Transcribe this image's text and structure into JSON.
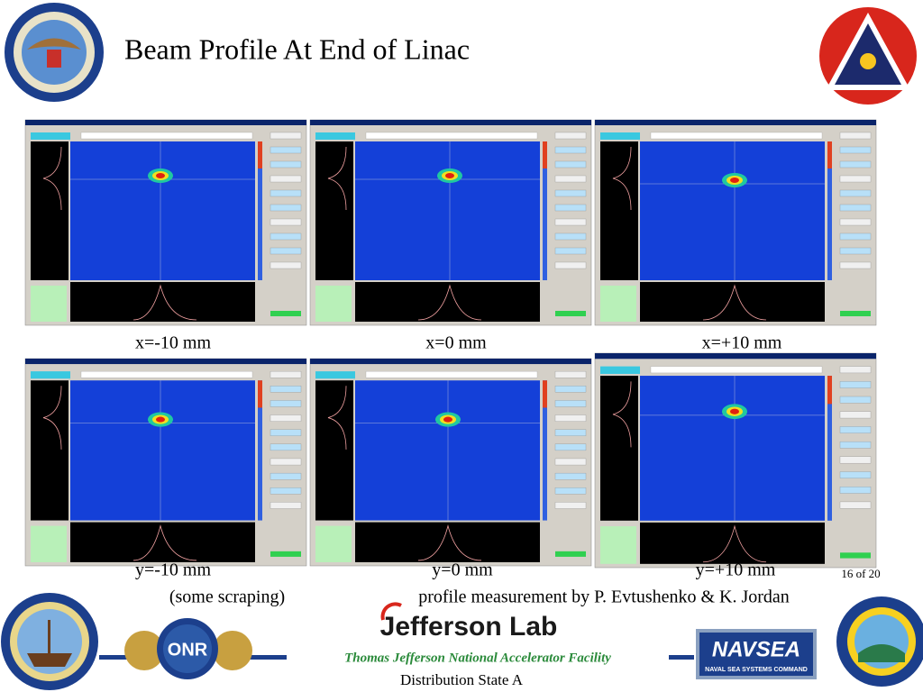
{
  "header": {
    "title": "Beam Profile At End of Linac"
  },
  "captions": {
    "row1": [
      "x=-10 mm",
      "x=0 mm",
      "x=+10 mm"
    ],
    "row2": [
      "y=-10 mm",
      "y=0 mm",
      "y=+10 mm"
    ]
  },
  "page_number": "16 of 20",
  "notes": {
    "scraping": "(some scraping)",
    "credit": "profile measurement by P. Evtushenko & K. Jordan"
  },
  "footer": {
    "lab": "Jefferson Lab",
    "facility": "Thomas Jefferson National Accelerator Facility",
    "distribution": "Distribution State A",
    "navsea": "NAVSEA",
    "navsea_sub": "NAVAL SEA SYSTEMS COMMAND",
    "onr": "ONR"
  }
}
